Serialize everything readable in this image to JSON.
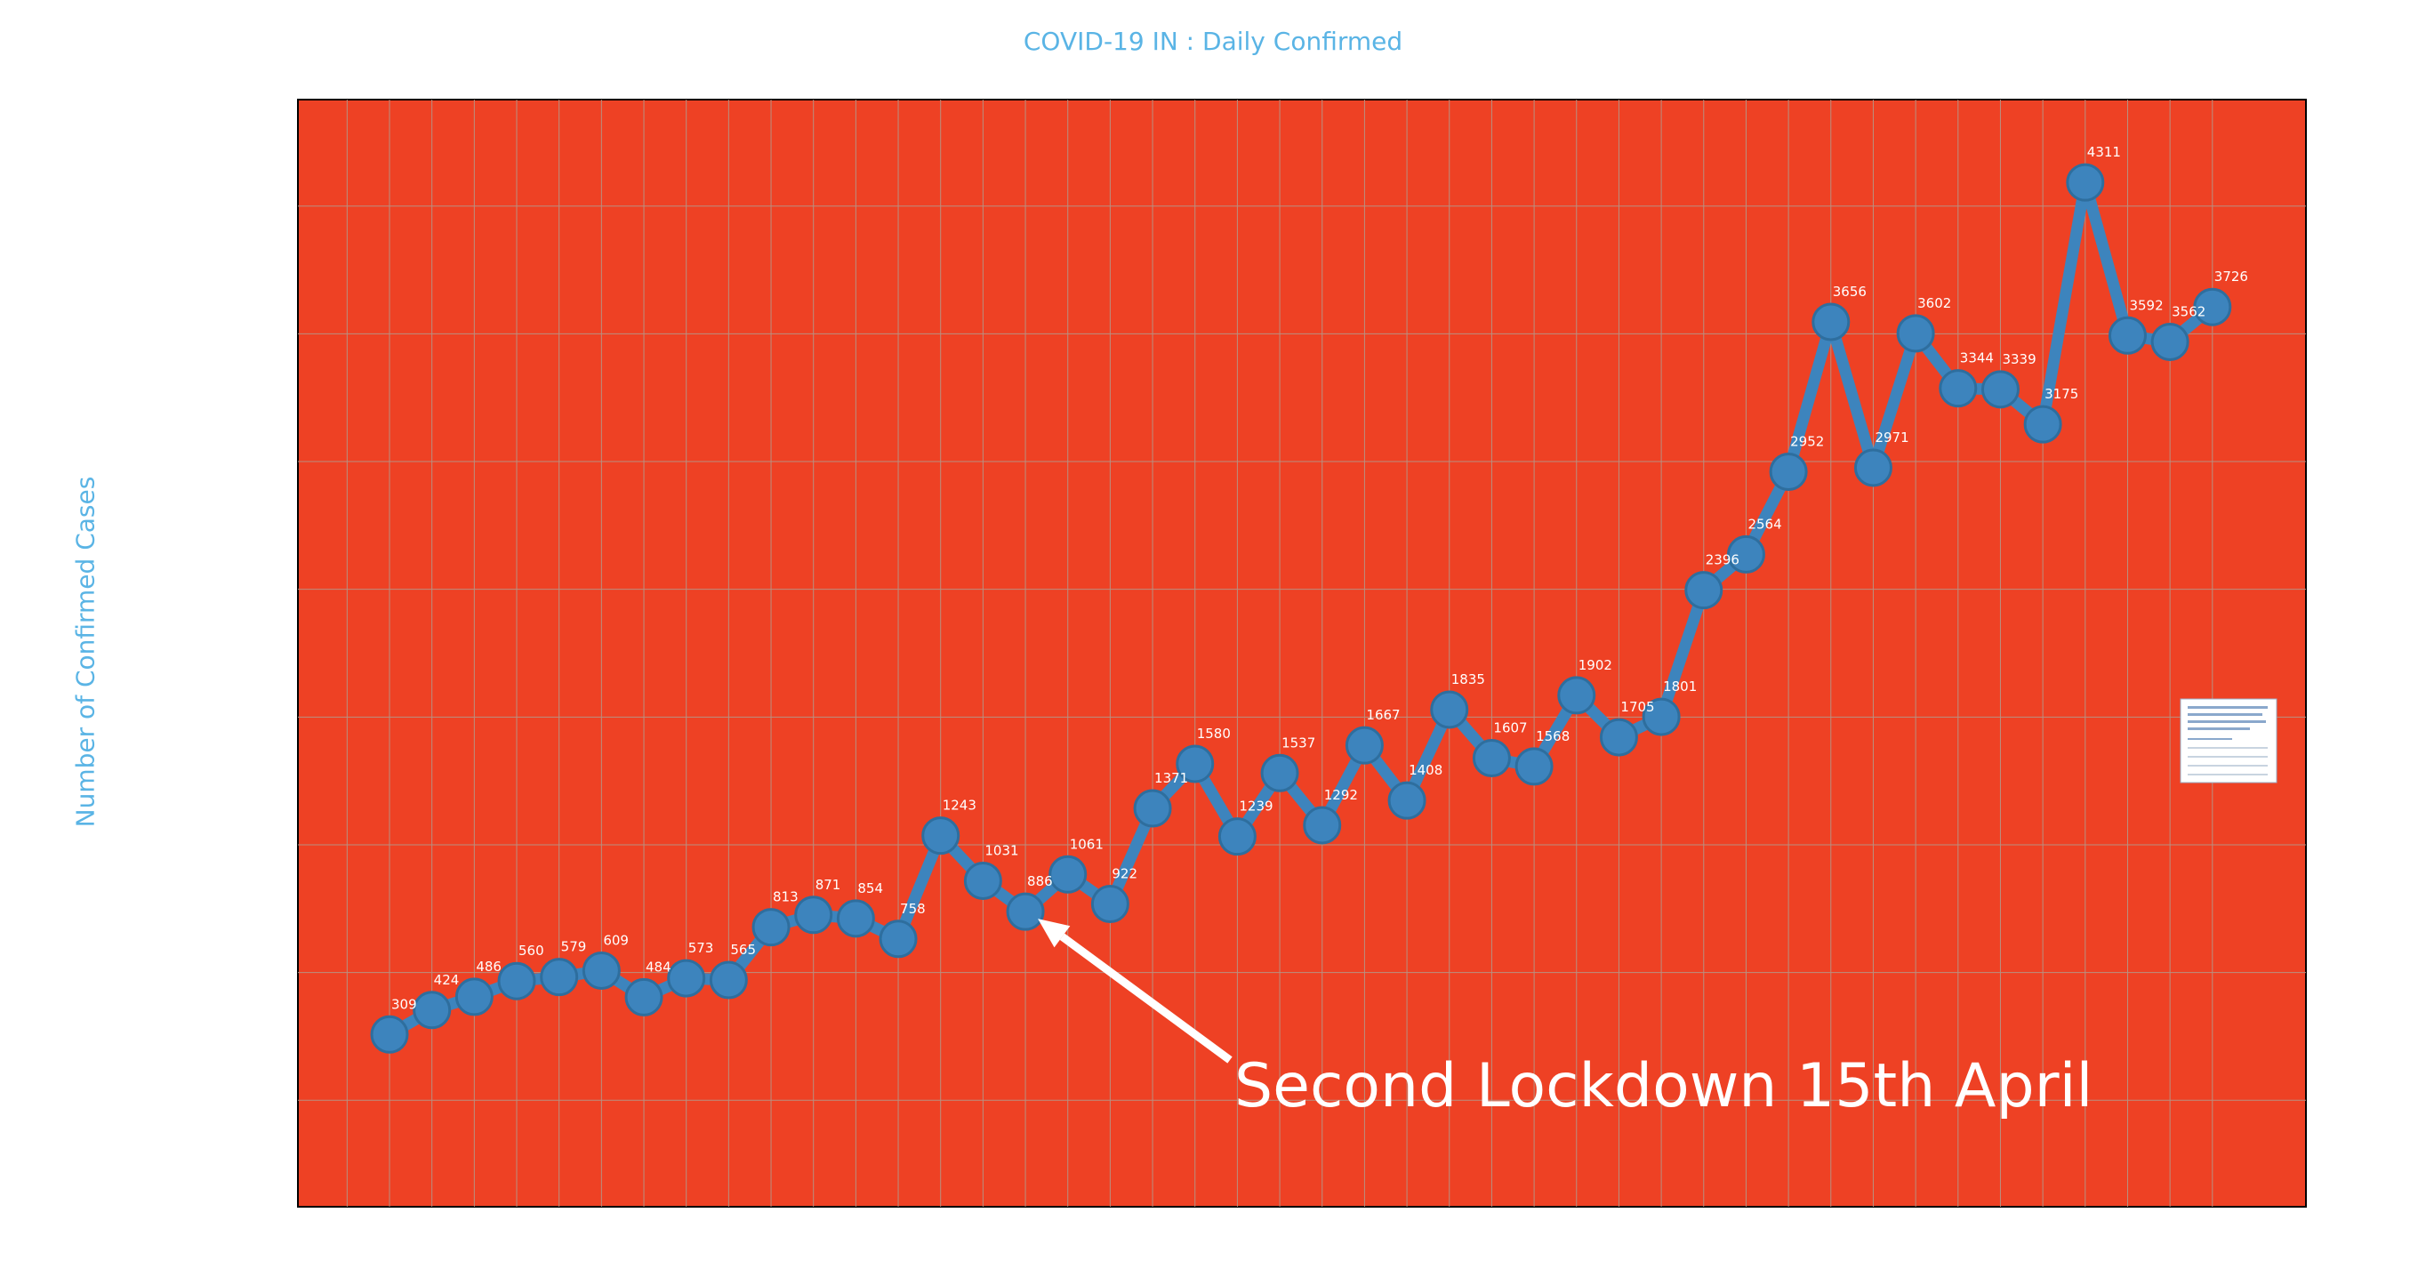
{
  "chart_data": {
    "type": "line",
    "title": "COVID-19 IN : Daily Confirmed",
    "xlabel": "",
    "ylabel": "Number of Confirmed Cases",
    "ylim": [
      -500,
      4700
    ],
    "grid": true,
    "colors": {
      "plot_background": "#ee4124",
      "line": "#3d84bd",
      "marker_edge": "#2e6e9e",
      "grid": "#b89080",
      "title": "#5ab4e5",
      "labels": "#ffffff"
    },
    "series": [
      {
        "values": [
          309,
          424,
          486,
          560,
          579,
          609,
          484,
          573,
          565,
          813,
          871,
          854,
          758,
          1243,
          1031,
          886,
          1061,
          922,
          1371,
          1580,
          1239,
          1537,
          1292,
          1667,
          1408,
          1835,
          1607,
          1568,
          1902,
          1705,
          1801,
          2396,
          2564,
          2952,
          3656,
          2971,
          3602,
          3344,
          3339,
          3175,
          4311,
          3592,
          3562,
          3726
        ]
      }
    ],
    "annotations": [
      {
        "text": "Second Lockdown 15th April",
        "index": 15,
        "value": 886
      }
    ]
  }
}
